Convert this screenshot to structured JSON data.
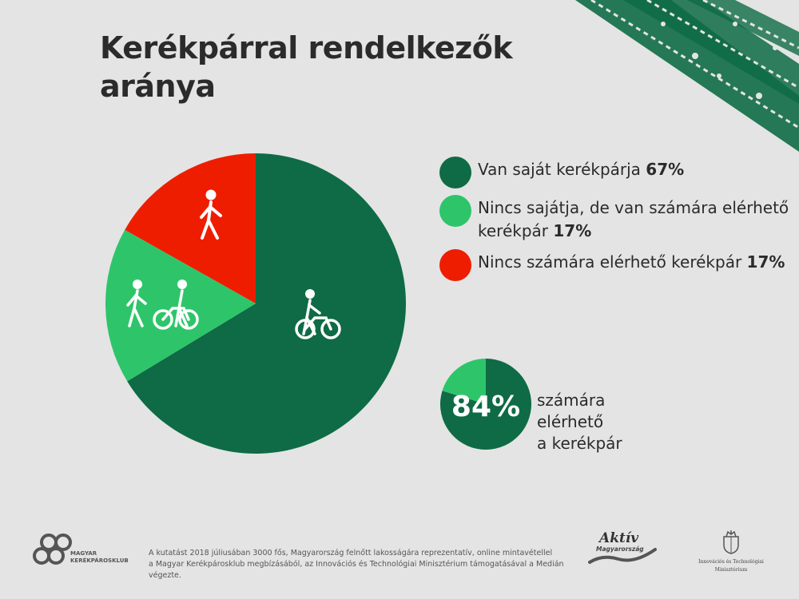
{
  "title_lines": [
    "Kerékpárral rendelkezők",
    "aránya"
  ],
  "colors": {
    "dark_green": "#0e6b45",
    "light_green": "#2ec56a",
    "red": "#ee1d00",
    "background": "#e4e4e4"
  },
  "legend": [
    {
      "text": "Van saját kerékpárja ",
      "pct": "67%",
      "color": "#0e6b45"
    },
    {
      "text": "Nincs sajátja, de van számára elérhető kerékpár ",
      "pct": "17%",
      "color": "#2ec56a"
    },
    {
      "text": "Nincs számára elérhető kerékpár ",
      "pct": "17%",
      "color": "#ee1d00"
    }
  ],
  "summary": {
    "pct": "84%",
    "lines": [
      "számára",
      "elérhető",
      "a kerékpár"
    ]
  },
  "chart_data": [
    {
      "type": "pie",
      "title": "Kerékpárral rendelkezők aránya",
      "categories": [
        "Van saját kerékpárja",
        "Nincs sajátja, de van számára elérhető kerékpár",
        "Nincs számára elérhető kerékpár"
      ],
      "values": [
        67,
        17,
        17
      ],
      "colors": [
        "#0e6b45",
        "#2ec56a",
        "#ee1d00"
      ],
      "icons": [
        "person-with-bike-icon",
        "person-and-person-with-bike-icon",
        "walking-person-icon"
      ]
    },
    {
      "type": "pie",
      "title": "84% számára elérhető a kerékpár",
      "categories": [
        "Van saját kerékpárja",
        "Nincs sajátja, de van számára elérhető kerékpár"
      ],
      "values": [
        67,
        17
      ],
      "colors": [
        "#0e6b45",
        "#2ec56a"
      ]
    }
  ],
  "footer": {
    "club_logo_lines": [
      "MAGYAR",
      "KERÉKPÁROSKLUB"
    ],
    "footnote_lines": [
      "A kutatást 2018 júliusában 3000 fős, Magyarország felnőtt lakosságára reprezentatív, online mintavétellel",
      "a Magyar Kerékpárosklub megbízásából, az Innovációs és Technológiai Minisztérium támogatásával a Medián végezte."
    ],
    "aktiv_logo": {
      "line1": "Aktív",
      "line2": "Magyarország"
    },
    "ministry_logo": {
      "line1": "Innovációs és Technológiai",
      "line2": "Minisztérium"
    }
  }
}
